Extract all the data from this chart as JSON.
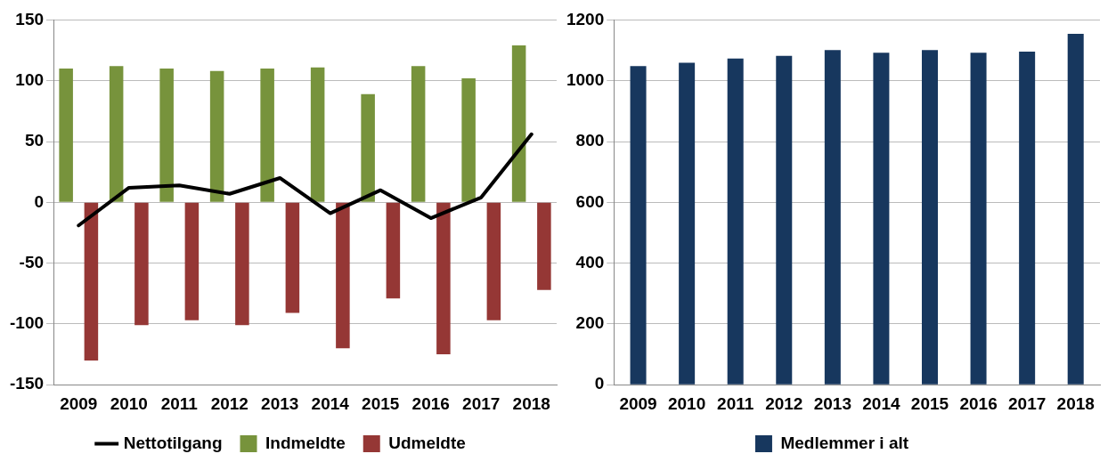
{
  "chart_data": [
    {
      "type": "bar",
      "categories": [
        "2009",
        "2010",
        "2011",
        "2012",
        "2013",
        "2014",
        "2015",
        "2016",
        "2017",
        "2018"
      ],
      "series": [
        {
          "name": "Indmeldte",
          "color": "#77933c",
          "values": [
            110,
            112,
            110,
            108,
            110,
            111,
            89,
            112,
            102,
            129
          ]
        },
        {
          "name": "Udmeldte",
          "color": "#953735",
          "values": [
            -130,
            -101,
            -97,
            -101,
            -91,
            -120,
            -79,
            -125,
            -97,
            -72
          ]
        },
        {
          "name": "Nettotilgang",
          "type": "line",
          "color": "#000000",
          "values": [
            -19,
            12,
            14,
            7,
            20,
            -9,
            10,
            -13,
            4,
            56
          ]
        }
      ],
      "ylim": [
        -150,
        150
      ],
      "yticks": [
        -150,
        -100,
        -50,
        0,
        50,
        100,
        150
      ],
      "grid": "y",
      "legend": "bottom"
    },
    {
      "type": "bar",
      "categories": [
        "2009",
        "2010",
        "2011",
        "2012",
        "2013",
        "2014",
        "2015",
        "2016",
        "2017",
        "2018"
      ],
      "series": [
        {
          "name": "Medlemmer i alt",
          "color": "#17375e",
          "values": [
            1048,
            1059,
            1073,
            1082,
            1101,
            1092,
            1101,
            1092,
            1096,
            1154
          ]
        }
      ],
      "ylim": [
        0,
        1200
      ],
      "yticks": [
        0,
        200,
        400,
        600,
        800,
        1000,
        1200
      ],
      "grid": "y",
      "legend": "bottom"
    }
  ]
}
